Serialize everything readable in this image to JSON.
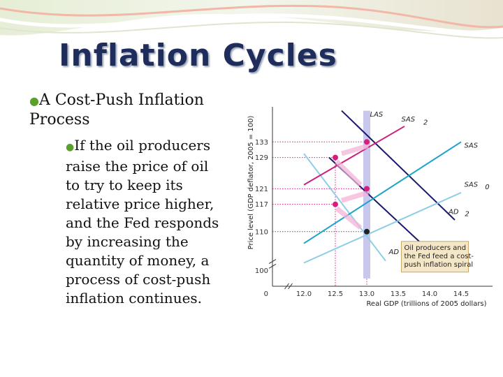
{
  "slide": {
    "title": "Inflation Cycles",
    "bullet_main": "A Cost-Push Inflation Process",
    "bullet_sub": "If the oil producers raise the price of oil to try to keep its relative price higher, and the Fed responds by increasing the quantity of money, a process of cost-push inflation continues."
  },
  "colors": {
    "title": "#1f2d5c",
    "bullet": "#5aa02c",
    "LAS": "#c8c8ee",
    "AD": "#8ecde8",
    "SAS": "#1aa4c7",
    "SAS2": "#cc1e7c",
    "ADline": "#1a1a6e",
    "point_pink": "#d91d7f",
    "point_black": "#222222",
    "note_bg": "#f4e7c8"
  },
  "chart_data": {
    "type": "line",
    "xlabel": "Real GDP (trillions of 2005 dollars)",
    "ylabel": "Price level (GDP deflator, 2005 = 100)",
    "x_ticks": [
      "0",
      "12.0",
      "12.5",
      "13.0",
      "13.5",
      "14.0",
      "14.5"
    ],
    "x_tick_values": [
      12.0,
      12.5,
      13.0,
      13.5,
      14.0,
      14.5
    ],
    "x_origin_label": "0",
    "y_ticks": [
      100,
      110,
      117,
      121,
      129,
      133
    ],
    "y_highlight_ticks": [
      117,
      121,
      129,
      133
    ],
    "xlim": [
      11.5,
      15.0
    ],
    "ylim": [
      96,
      142
    ],
    "series": [
      {
        "name": "LAS",
        "points": [
          [
            13.0,
            98
          ],
          [
            13.0,
            141
          ]
        ],
        "color_key": "LAS",
        "width": 10
      },
      {
        "name": "AD0",
        "points": [
          [
            12.0,
            130
          ],
          [
            13.3,
            102.5
          ]
        ],
        "color_key": "AD",
        "width": 2
      },
      {
        "name": "AD1",
        "points": [
          [
            12.4,
            129
          ],
          [
            14.1,
            103.5
          ]
        ],
        "color_key": "ADline",
        "width": 2
      },
      {
        "name": "AD2",
        "points": [
          [
            12.6,
            141
          ],
          [
            14.4,
            113
          ]
        ],
        "color_key": "ADline",
        "width": 2
      },
      {
        "name": "SAS0",
        "points": [
          [
            12.0,
            102
          ],
          [
            14.5,
            120
          ]
        ],
        "color_key": "AD",
        "width": 2
      },
      {
        "name": "SAS",
        "points": [
          [
            12.0,
            107
          ],
          [
            14.5,
            133
          ]
        ],
        "color_key": "SAS",
        "width": 2
      },
      {
        "name": "SAS2",
        "points": [
          [
            12.0,
            122
          ],
          [
            13.6,
            137
          ]
        ],
        "color_key": "SAS2",
        "width": 2
      }
    ],
    "labels": [
      {
        "text": "LAS",
        "x": 13.05,
        "y": 139.5
      },
      {
        "text": "SAS",
        "x": 13.55,
        "y": 138.2
      },
      {
        "text": "2",
        "x": 13.9,
        "y": 137.4,
        "sub": true
      },
      {
        "text": "SAS",
        "x": 14.55,
        "y": 131.5
      },
      {
        "text": "SAS",
        "x": 14.55,
        "y": 121.5
      },
      {
        "text": "0",
        "x": 14.88,
        "y": 120.9,
        "sub": true
      },
      {
        "text": "AD",
        "x": 14.3,
        "y": 114.5
      },
      {
        "text": "2",
        "x": 14.56,
        "y": 114.0,
        "sub": true
      },
      {
        "text": "AD",
        "x": 13.35,
        "y": 104.2
      },
      {
        "text": "0",
        "x": 13.58,
        "y": 103.7,
        "sub": true
      },
      {
        "text": "AD",
        "x": 14.05,
        "y": 104.8
      },
      {
        "text": "1",
        "x": 14.31,
        "y": 104.3,
        "sub": true
      }
    ],
    "points": [
      {
        "x": 13.0,
        "y": 110,
        "color_key": "point_black"
      },
      {
        "x": 12.5,
        "y": 117,
        "color_key": "point_pink"
      },
      {
        "x": 13.0,
        "y": 121,
        "color_key": "point_pink"
      },
      {
        "x": 12.5,
        "y": 129,
        "color_key": "point_pink"
      },
      {
        "x": 13.0,
        "y": 133,
        "color_key": "point_pink"
      }
    ],
    "arrows": [
      {
        "from": [
          12.52,
          116
        ],
        "to": [
          12.9,
          111
        ]
      },
      {
        "from": [
          13.02,
          120
        ],
        "to": [
          12.6,
          118
        ]
      },
      {
        "from": [
          12.52,
          128
        ],
        "to": [
          12.9,
          122
        ]
      },
      {
        "from": [
          13.02,
          132
        ],
        "to": [
          12.6,
          130
        ]
      }
    ],
    "annotation": {
      "lines": [
        "Oil producers and",
        "the Fed feed a cost-",
        "push inflation spiral"
      ],
      "x": 13.55,
      "y": 107.5
    }
  }
}
